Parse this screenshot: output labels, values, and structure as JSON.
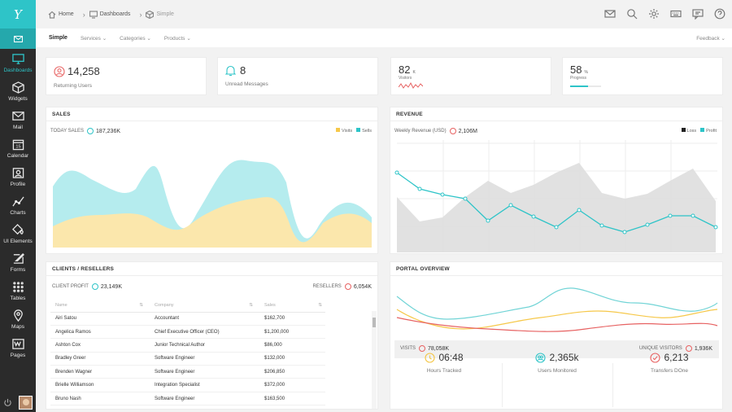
{
  "sidebar": {
    "logo": "Y",
    "items": [
      {
        "label": "Dashboards",
        "icon": "monitor-icon"
      },
      {
        "label": "Widgets",
        "icon": "cube-icon"
      },
      {
        "label": "Mail",
        "icon": "envelope-icon"
      },
      {
        "label": "Calendar",
        "icon": "calendar-icon",
        "day": "15"
      },
      {
        "label": "Profile",
        "icon": "profile-icon"
      },
      {
        "label": "Charts",
        "icon": "chart-line-icon"
      },
      {
        "label": "UI Elements",
        "icon": "paint-bucket-icon"
      },
      {
        "label": "Forms",
        "icon": "edit-form-icon"
      },
      {
        "label": "Tables",
        "icon": "grid-icon"
      },
      {
        "label": "Maps",
        "icon": "map-pin-icon"
      },
      {
        "label": "Pages",
        "icon": "pages-icon"
      }
    ]
  },
  "breadcrumb": [
    "Home",
    "Dashboards",
    "Simple"
  ],
  "subnav": {
    "items": [
      "Simple",
      "Services",
      "Categories",
      "Products"
    ],
    "feedback": "Feedback"
  },
  "kpis": {
    "returning": {
      "value": "14,258",
      "label": "Returning Users"
    },
    "unread": {
      "value": "8",
      "label": "Unread Messages"
    },
    "visitors": {
      "value": "82",
      "unit": "K",
      "label": "Visitors"
    },
    "progress": {
      "value": "58",
      "unit": "%",
      "label": "Progress",
      "fraction": 0.58
    }
  },
  "sales": {
    "title": "SALES",
    "stat_label": "TODAY SALES",
    "stat_value": "187,236K",
    "legend": [
      "Visits",
      "Sells"
    ],
    "colors": {
      "visits": "#fbe7ac",
      "sells": "#b5ecee"
    }
  },
  "revenue": {
    "title": "REVENUE",
    "stat_label": "Weekly Revenue (USD)",
    "stat_value": "2,106M",
    "legend": [
      "Loss",
      "Profit"
    ],
    "colors": {
      "loss": "#222222",
      "profit": "#2ec4c8"
    }
  },
  "clients": {
    "title": "CLIENTS / RESELLERS",
    "profit_label": "CLIENT PROFIT",
    "profit_value": "23,149K",
    "resellers_label": "RESELLERS",
    "resellers_value": "6,054K",
    "columns": [
      "Name",
      "Company",
      "Sales"
    ],
    "rows": [
      [
        "Airi Satou",
        "Accountant",
        "$162,700"
      ],
      [
        "Angelica Ramos",
        "Chief Executive Officer (CEO)",
        "$1,200,000"
      ],
      [
        "Ashton Cox",
        "Junior Technical Author",
        "$86,000"
      ],
      [
        "Bradley Greer",
        "Software Engineer",
        "$132,000"
      ],
      [
        "Brenden Wagner",
        "Software Engineer",
        "$206,850"
      ],
      [
        "Brielle Williamson",
        "Integration Specialist",
        "$372,000"
      ],
      [
        "Bruno Nash",
        "Software Engineer",
        "$163,500"
      ]
    ]
  },
  "portal": {
    "title": "PORTAL OVERVIEW",
    "visits_label": "VISITS",
    "visits_value": "78,058K",
    "unique_label": "UNIQUE VISITORS",
    "unique_value": "1,936K",
    "stats": [
      {
        "value": "06:48",
        "label": "Hours Tracked",
        "icon": "clock-icon",
        "color": "#f4c542"
      },
      {
        "value": "2,365k",
        "label": "Users Monitored",
        "icon": "users-icon",
        "color": "#2ec4c8"
      },
      {
        "value": "6,213",
        "label": "Transfers DOne",
        "icon": "check-circle-icon",
        "color": "#e76262"
      }
    ]
  },
  "accent": "#2ec4c8"
}
